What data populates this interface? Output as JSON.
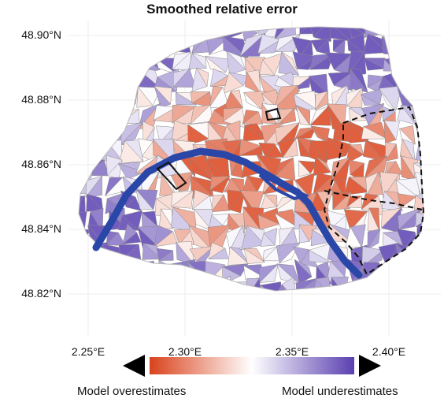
{
  "map": {
    "title": "Smoothed relative error",
    "lat_ticks": [
      "48.90°N",
      "48.88°N",
      "48.86°N",
      "48.84°N",
      "48.82°N"
    ],
    "lon_ticks": [
      "2.25°E",
      "2.30°E",
      "2.35°E",
      "2.40°E"
    ],
    "lat_values": [
      48.9,
      48.88,
      48.86,
      48.84,
      48.82
    ],
    "lon_values": [
      2.25,
      2.3,
      2.35,
      2.4
    ],
    "extent": {
      "lon": [
        2.235,
        2.425
      ],
      "lat": [
        48.812,
        48.906
      ]
    },
    "river_color": "#2a47a8",
    "overestimate_color": "#d9431c",
    "underestimate_color": "#5a40b0"
  },
  "legend": {
    "left_caption": "Model overestimates",
    "right_caption": "Model underestimates",
    "gradient": [
      "#d9431c",
      "#ffffff",
      "#5a40b0"
    ]
  }
}
